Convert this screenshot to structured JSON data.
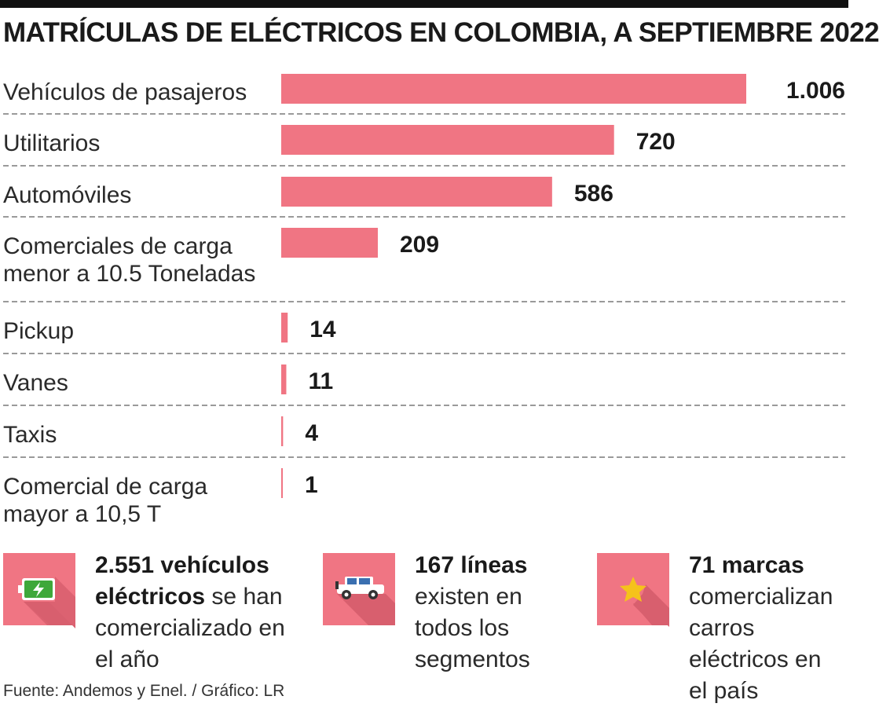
{
  "title": "MATRÍCULAS DE ELÉCTRICOS EN COLOMBIA, A SEPTIEMBRE 2022",
  "colors": {
    "bar": "#f07583",
    "icon_bg": "#f07583",
    "shadow": "#d85f6e",
    "text": "#1a1a1a",
    "rule": "#111111"
  },
  "chart_data": {
    "type": "bar",
    "orientation": "horizontal",
    "title": "MATRÍCULAS DE ELÉCTRICOS EN COLOMBIA, A SEPTIEMBRE 2022",
    "xlabel": "",
    "ylabel": "",
    "xlim": [
      0,
      1006
    ],
    "categories": [
      [
        "Vehículos de pasajeros"
      ],
      [
        "Utilitarios"
      ],
      [
        "Automóviles"
      ],
      [
        "Comerciales de carga",
        "menor a 10.5 Toneladas"
      ],
      [
        "Pickup"
      ],
      [
        "Vanes"
      ],
      [
        "Taxis"
      ],
      [
        "Comercial de carga",
        "mayor a 10,5 T"
      ]
    ],
    "values": [
      1006,
      720,
      586,
      209,
      14,
      11,
      4,
      1
    ],
    "value_labels": [
      "1.006",
      "720",
      "586",
      "209",
      "14",
      "11",
      "4",
      "1"
    ]
  },
  "stats": [
    {
      "icon": "battery-icon",
      "bold": "2.551 vehículos eléctricos",
      "text": " se han comercializado en el año"
    },
    {
      "icon": "car-icon",
      "bold": "167 líneas",
      "text": " existen en todos los segmentos"
    },
    {
      "icon": "star-icon",
      "bold": "71 marcas",
      "text": " comercializan carros eléctricos en el país"
    }
  ],
  "source": "Fuente: Andemos y Enel.  / Gráfico: LR"
}
